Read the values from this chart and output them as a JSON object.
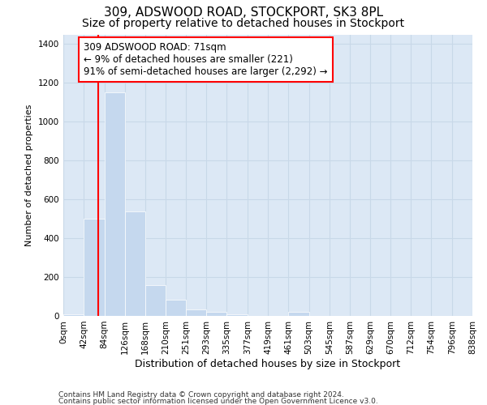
{
  "title1": "309, ADSWOOD ROAD, STOCKPORT, SK3 8PL",
  "title2": "Size of property relative to detached houses in Stockport",
  "xlabel": "Distribution of detached houses by size in Stockport",
  "ylabel": "Number of detached properties",
  "footnote1": "Contains HM Land Registry data © Crown copyright and database right 2024.",
  "footnote2": "Contains public sector information licensed under the Open Government Licence v3.0.",
  "bin_edges": [
    0,
    42,
    84,
    126,
    168,
    210,
    251,
    293,
    335,
    377,
    419,
    461,
    503,
    545,
    587,
    629,
    670,
    712,
    754,
    796,
    838
  ],
  "bar_heights": [
    10,
    500,
    1150,
    540,
    160,
    85,
    35,
    20,
    10,
    0,
    0,
    20,
    0,
    0,
    0,
    0,
    0,
    0,
    0,
    0
  ],
  "bar_color": "#c5d8ee",
  "grid_color": "#c8d8e8",
  "background_color": "#dce8f5",
  "red_line_x": 71,
  "annotation_line1": "309 ADSWOOD ROAD: 71sqm",
  "annotation_line2": "← 9% of detached houses are smaller (221)",
  "annotation_line3": "91% of semi-detached houses are larger (2,292) →",
  "annotation_box_color": "white",
  "annotation_box_edge_color": "red",
  "ylim": [
    0,
    1450
  ],
  "yticks": [
    0,
    200,
    400,
    600,
    800,
    1000,
    1200,
    1400
  ],
  "tick_labels": [
    "0sqm",
    "42sqm",
    "84sqm",
    "126sqm",
    "168sqm",
    "210sqm",
    "251sqm",
    "293sqm",
    "335sqm",
    "377sqm",
    "419sqm",
    "461sqm",
    "503sqm",
    "545sqm",
    "587sqm",
    "629sqm",
    "670sqm",
    "712sqm",
    "754sqm",
    "796sqm",
    "838sqm"
  ],
  "title1_fontsize": 11,
  "title2_fontsize": 10,
  "xlabel_fontsize": 9,
  "ylabel_fontsize": 8,
  "tick_fontsize": 7.5,
  "annotation_fontsize": 8.5,
  "footnote_fontsize": 6.5
}
